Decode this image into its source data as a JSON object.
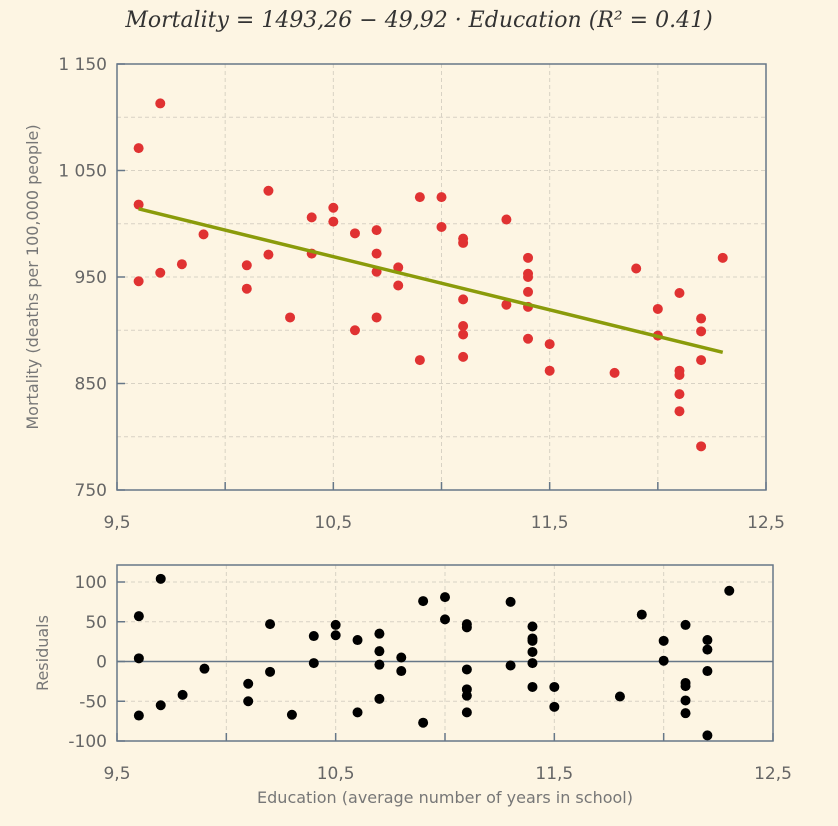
{
  "chart_data": [
    {
      "type": "scatter",
      "title": "Mortality = 1493,26 − 49,92 · Education    (R² = 0.41)",
      "ylabel": "Mortality (deaths per 100,000 people)",
      "xlabel": "",
      "xlim": [
        9.5,
        12.5
      ],
      "ylim": [
        750,
        1150
      ],
      "xticks": [
        "9,5",
        "10,5",
        "11,5",
        "12,5"
      ],
      "yticks": [
        "1 150",
        "1 050",
        "950",
        "850",
        "750"
      ],
      "grid": true,
      "point_color": "#e03232",
      "fit_line": {
        "intercept": 1493.26,
        "slope": -49.92,
        "x_range": [
          9.6,
          12.3
        ],
        "color": "#8a9b0a"
      },
      "x": [
        9.6,
        9.7,
        9.6,
        9.6,
        9.7,
        9.8,
        9.9,
        10.1,
        10.1,
        10.2,
        10.2,
        10.3,
        10.4,
        10.4,
        10.5,
        10.5,
        10.6,
        10.6,
        10.7,
        10.7,
        10.7,
        10.7,
        10.8,
        10.8,
        10.9,
        10.9,
        11.0,
        11.0,
        11.1,
        11.1,
        11.1,
        11.1,
        11.1,
        11.1,
        11.3,
        11.3,
        11.4,
        11.4,
        11.4,
        11.4,
        11.4,
        11.4,
        11.5,
        11.5,
        11.8,
        11.9,
        12.0,
        12.0,
        12.1,
        12.1,
        12.1,
        12.1,
        12.1,
        12.2,
        12.2,
        12.2,
        12.2,
        12.3
      ],
      "y": [
        1071,
        1113,
        1018,
        946,
        954,
        962,
        990,
        961,
        939,
        1031,
        971,
        912,
        1006,
        972,
        1015,
        1002,
        991,
        900,
        994,
        972,
        955,
        912,
        959,
        942,
        1025,
        872,
        1025,
        997,
        986,
        982,
        929,
        904,
        896,
        875,
        1004,
        924,
        968,
        953,
        950,
        936,
        922,
        892,
        887,
        862,
        860,
        958,
        920,
        895,
        935,
        862,
        858,
        840,
        824,
        911,
        899,
        872,
        791,
        968
      ]
    },
    {
      "type": "scatter",
      "xlabel": "Education (average number of years in school)",
      "ylabel": "Residuals",
      "xlim": [
        9.5,
        12.5
      ],
      "ylim": [
        -100,
        120
      ],
      "xticks": [
        "9,5",
        "10,5",
        "11,5",
        "12,5"
      ],
      "yticks": [
        "100",
        "50",
        "0",
        "-50",
        "-100"
      ],
      "grid": true,
      "point_color": "#000000",
      "zero_line": true,
      "x": [
        9.6,
        9.7,
        9.6,
        9.6,
        9.7,
        9.8,
        9.9,
        10.1,
        10.1,
        10.2,
        10.2,
        10.3,
        10.4,
        10.4,
        10.5,
        10.5,
        10.6,
        10.6,
        10.7,
        10.7,
        10.7,
        10.7,
        10.8,
        10.8,
        10.9,
        10.9,
        11.0,
        11.0,
        11.1,
        11.1,
        11.1,
        11.1,
        11.1,
        11.1,
        11.3,
        11.3,
        11.4,
        11.4,
        11.4,
        11.4,
        11.4,
        11.4,
        11.5,
        11.5,
        11.8,
        11.9,
        12.0,
        12.0,
        12.1,
        12.1,
        12.1,
        12.1,
        12.1,
        12.2,
        12.2,
        12.2,
        12.2,
        12.3
      ],
      "y": [
        57,
        104,
        4,
        -68,
        -55,
        -42,
        -9,
        -28,
        -50,
        47,
        -13,
        -67,
        32,
        -2,
        46,
        33,
        27,
        -64,
        35,
        13,
        -4,
        -47,
        5,
        -12,
        76,
        -77,
        81,
        53,
        47,
        43,
        -10,
        -35,
        -43,
        -64,
        75,
        -5,
        44,
        29,
        26,
        12,
        -2,
        -32,
        -32,
        -57,
        -44,
        59,
        26,
        1,
        46,
        -27,
        -31,
        -49,
        -65,
        27,
        15,
        -12,
        -93,
        89
      ]
    }
  ]
}
